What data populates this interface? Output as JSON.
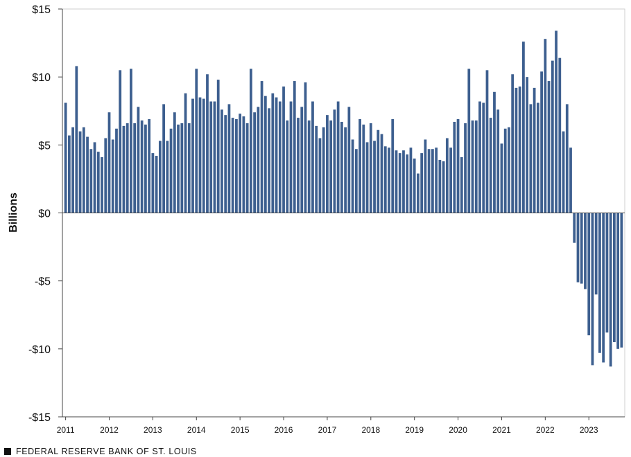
{
  "chart_data": {
    "type": "bar",
    "ylabel": "Billions",
    "ylim": [
      -15,
      15
    ],
    "yticks": [
      15,
      10,
      5,
      0,
      -5,
      -10,
      -15
    ],
    "ytick_labels": [
      "$15",
      "$10",
      "$5",
      "$0",
      "-$5",
      "-$10",
      "-$15"
    ],
    "xticks": [
      "2011",
      "2012",
      "2013",
      "2014",
      "2015",
      "2016",
      "2017",
      "2018",
      "2019",
      "2020",
      "2021",
      "2022",
      "2023"
    ],
    "start": "2011-01",
    "frequency": "monthly",
    "grid": false,
    "legend": "none",
    "bar_color": "#3d5f8f",
    "values": [
      8.1,
      5.7,
      6.3,
      10.8,
      6.0,
      6.3,
      5.6,
      4.7,
      5.2,
      4.5,
      4.1,
      5.5,
      7.4,
      5.4,
      6.2,
      10.5,
      6.4,
      6.6,
      10.6,
      6.6,
      7.8,
      6.8,
      6.5,
      6.9,
      4.4,
      4.2,
      5.3,
      8.0,
      5.3,
      6.2,
      7.4,
      6.5,
      6.6,
      8.8,
      6.6,
      8.4,
      10.6,
      8.5,
      8.4,
      10.2,
      8.2,
      8.2,
      9.8,
      7.6,
      7.2,
      8.0,
      7.0,
      6.9,
      7.3,
      7.1,
      6.6,
      10.6,
      7.4,
      7.8,
      9.7,
      8.6,
      7.7,
      8.8,
      8.5,
      8.2,
      9.3,
      6.8,
      8.2,
      9.7,
      7.0,
      7.8,
      9.6,
      6.8,
      8.2,
      6.4,
      5.5,
      6.3,
      7.2,
      6.8,
      7.6,
      8.2,
      6.7,
      6.3,
      7.8,
      5.4,
      4.7,
      6.9,
      6.5,
      5.2,
      6.6,
      5.3,
      6.1,
      5.8,
      4.9,
      4.8,
      6.9,
      4.6,
      4.4,
      4.6,
      4.3,
      4.8,
      4.0,
      2.9,
      4.4,
      5.4,
      4.7,
      4.7,
      4.8,
      3.9,
      3.8,
      5.5,
      4.8,
      6.7,
      6.9,
      4.1,
      6.6,
      10.6,
      6.8,
      6.8,
      8.2,
      8.1,
      10.5,
      7.0,
      8.9,
      7.6,
      5.1,
      6.2,
      6.3,
      10.2,
      9.2,
      9.3,
      12.6,
      10.0,
      8.0,
      9.2,
      8.1,
      10.4,
      12.8,
      9.7,
      11.2,
      13.4,
      11.4,
      6.0,
      8.0,
      4.8,
      -2.2,
      -5.1,
      -5.2,
      -5.6,
      -9.0,
      -11.2,
      -6.0,
      -10.3,
      -11.0,
      -8.8,
      -11.3,
      -9.5,
      -10.0,
      -9.9
    ]
  },
  "footer": {
    "source": "FEDERAL RESERVE BANK OF ST. LOUIS"
  }
}
